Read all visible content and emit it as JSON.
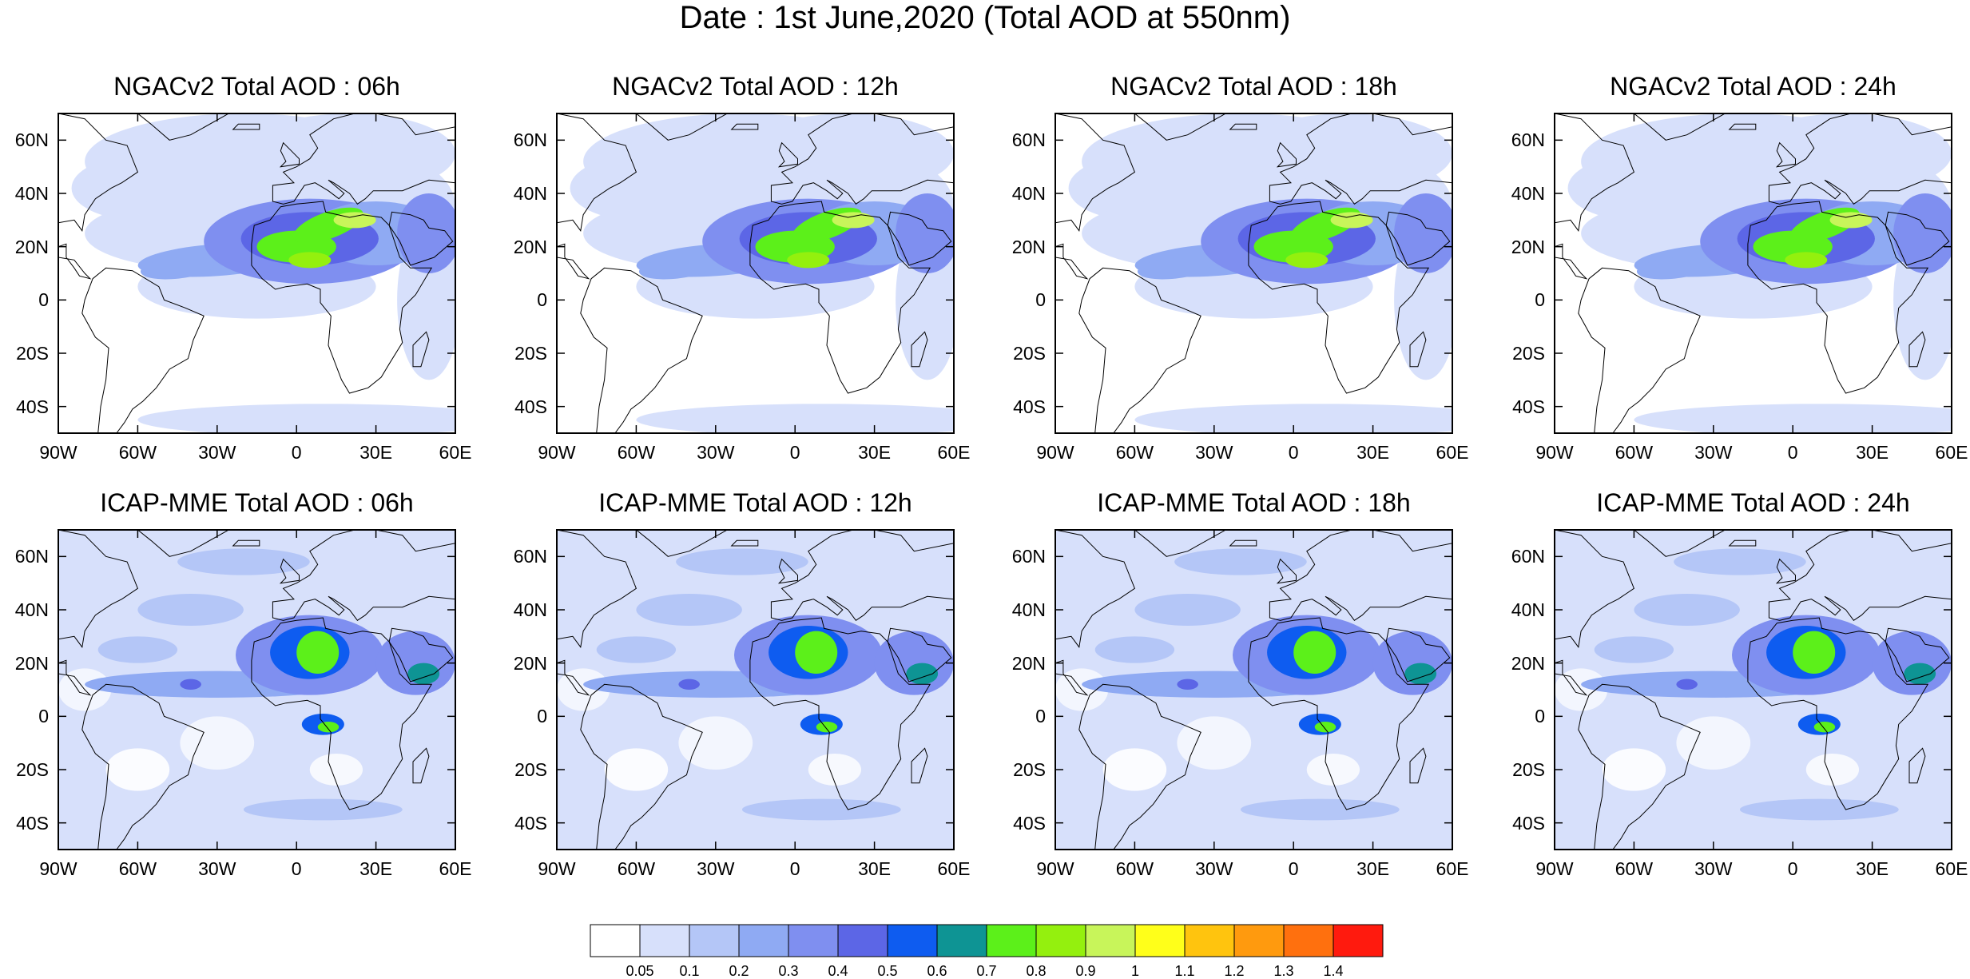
{
  "title": "Date : 1st June,2020 (Total AOD at 550nm)",
  "panels": [
    {
      "title": "NGACv2 Total AOD : 06h"
    },
    {
      "title": "NGACv2 Total AOD : 12h"
    },
    {
      "title": "NGACv2 Total AOD : 18h"
    },
    {
      "title": "NGACv2 Total AOD : 24h"
    },
    {
      "title": "ICAP-MME Total AOD : 06h"
    },
    {
      "title": "ICAP-MME Total AOD : 12h"
    },
    {
      "title": "ICAP-MME Total AOD : 18h"
    },
    {
      "title": "ICAP-MME Total AOD : 24h"
    }
  ],
  "map_extent": {
    "lon": [
      -90,
      60
    ],
    "lat": [
      -50,
      70
    ]
  },
  "lat_ticks": [
    {
      "value": 60,
      "label": "60N"
    },
    {
      "value": 40,
      "label": "40N"
    },
    {
      "value": 20,
      "label": "20N"
    },
    {
      "value": 0,
      "label": "0"
    },
    {
      "value": -20,
      "label": "20S"
    },
    {
      "value": -40,
      "label": "40S"
    }
  ],
  "lon_ticks": [
    {
      "value": -90,
      "label": "90W"
    },
    {
      "value": -60,
      "label": "60W"
    },
    {
      "value": -30,
      "label": "30W"
    },
    {
      "value": 0,
      "label": "0"
    },
    {
      "value": 30,
      "label": "30E"
    },
    {
      "value": 60,
      "label": "60E"
    }
  ],
  "colorbar": {
    "colors": [
      "#ffffff",
      "#d7e0fb",
      "#b4c6f7",
      "#8faaf3",
      "#7f8ff0",
      "#5c66e6",
      "#0e5cf0",
      "#0e9494",
      "#5cf01a",
      "#94f00e",
      "#c8f55a",
      "#ffff1a",
      "#ffc40e",
      "#ff9a0e",
      "#ff700e",
      "#ff1a0e"
    ],
    "labels": [
      "0.05",
      "0.1",
      "0.2",
      "0.3",
      "0.4",
      "0.5",
      "0.6",
      "0.7",
      "0.8",
      "0.9",
      "1",
      "1.1",
      "1.2",
      "1.3",
      "1.4"
    ]
  }
}
